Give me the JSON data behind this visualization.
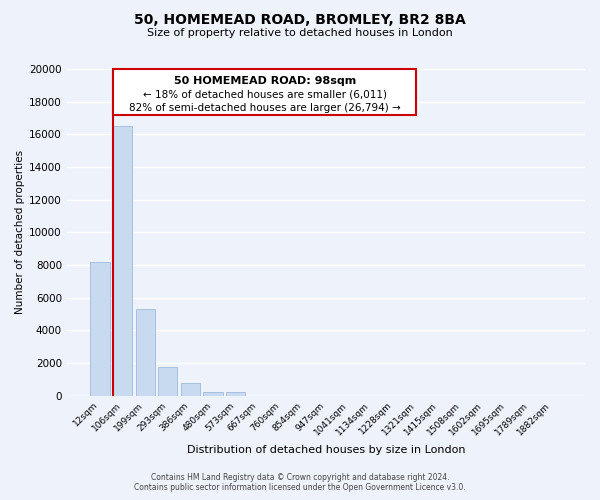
{
  "title": "50, HOMEMEAD ROAD, BROMLEY, BR2 8BA",
  "subtitle": "Size of property relative to detached houses in London",
  "xlabel": "Distribution of detached houses by size in London",
  "ylabel": "Number of detached properties",
  "bar_labels": [
    "12sqm",
    "106sqm",
    "199sqm",
    "293sqm",
    "386sqm",
    "480sqm",
    "573sqm",
    "667sqm",
    "760sqm",
    "854sqm",
    "947sqm",
    "1041sqm",
    "1134sqm",
    "1228sqm",
    "1321sqm",
    "1415sqm",
    "1508sqm",
    "1602sqm",
    "1695sqm",
    "1789sqm",
    "1882sqm"
  ],
  "bar_heights": [
    8200,
    16500,
    5300,
    1750,
    750,
    250,
    200,
    0,
    0,
    0,
    0,
    0,
    0,
    0,
    0,
    0,
    0,
    0,
    0,
    0,
    0
  ],
  "bar_color": "#c8daf0",
  "bar_edge_color": "#a8c0e0",
  "subject_line_color": "#cc0000",
  "annotation_title": "50 HOMEMEAD ROAD: 98sqm",
  "annotation_line1": "← 18% of detached houses are smaller (6,011)",
  "annotation_line2": "82% of semi-detached houses are larger (26,794) →",
  "annotation_box_color": "#ffffff",
  "annotation_box_edge": "#cc0000",
  "ylim": [
    0,
    20000
  ],
  "yticks": [
    0,
    2000,
    4000,
    6000,
    8000,
    10000,
    12000,
    14000,
    16000,
    18000,
    20000
  ],
  "footer_line1": "Contains HM Land Registry data © Crown copyright and database right 2024.",
  "footer_line2": "Contains public sector information licensed under the Open Government Licence v3.0.",
  "bg_color": "#eef2fa",
  "grid_color": "#ffffff"
}
